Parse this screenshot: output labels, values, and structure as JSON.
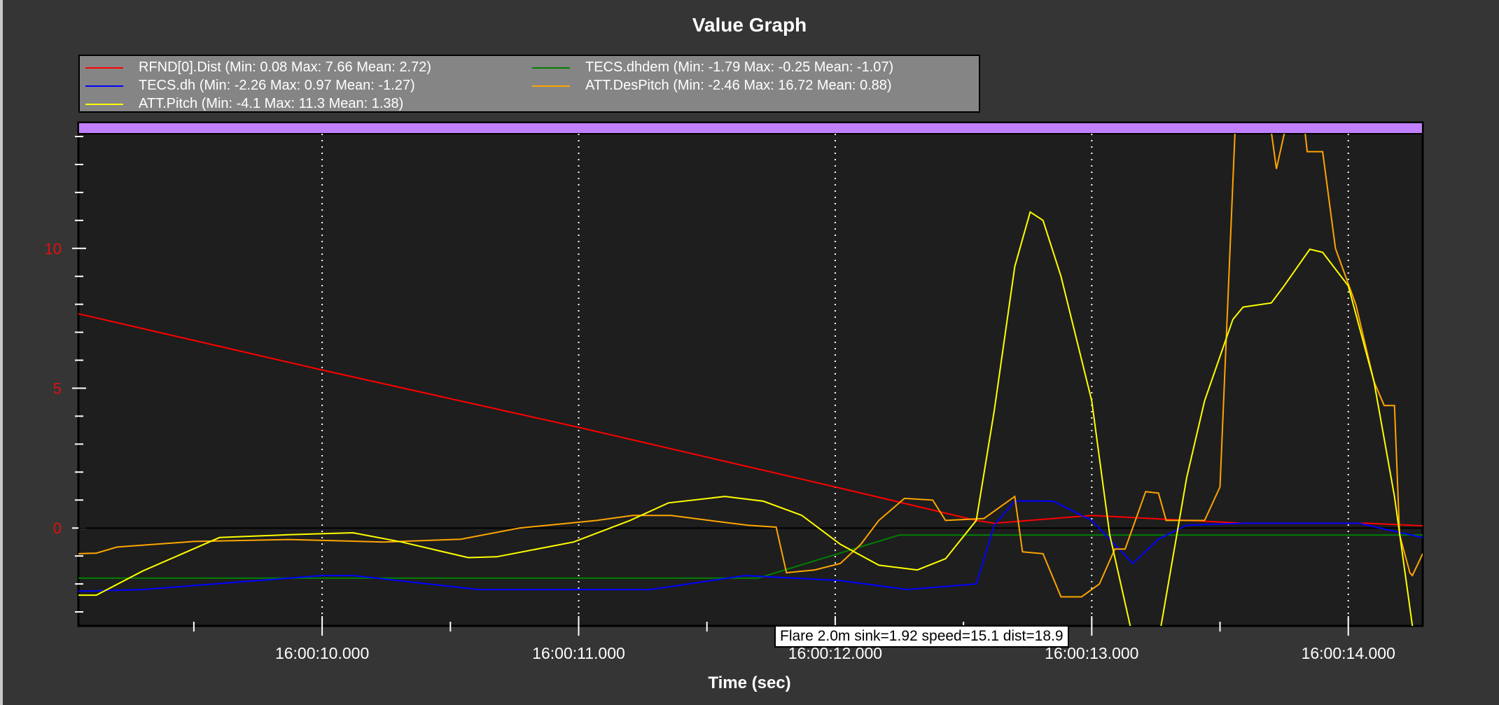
{
  "window": {
    "title": "Value Graph"
  },
  "tooltip": "Flare 2.0m sink=1.92 speed=15.1 dist=18.9",
  "colors": {
    "background": "#353535",
    "plot_bg": "#1e1e1e",
    "mode_band": "#c080ff",
    "ytick": "#e01010"
  },
  "chart_data": {
    "type": "line",
    "title": "Value Graph",
    "xlabel": "Time (sec)",
    "ylabel": "",
    "x_unit": "seconds after 16:00:00",
    "xlim": [
      9.05,
      14.29
    ],
    "ylim": [
      -3.5,
      14.1
    ],
    "grid": "vertical dotted at major x ticks",
    "legend_position": "top-left",
    "x_ticks": [
      {
        "value": 10,
        "label": "16:00:10.000"
      },
      {
        "value": 11,
        "label": "16:00:11.000"
      },
      {
        "value": 12,
        "label": "16:00:12.000"
      },
      {
        "value": 13,
        "label": "16:00:13.000"
      },
      {
        "value": 14,
        "label": "16:00:14.000"
      }
    ],
    "y_ticks": [
      {
        "value": 0,
        "label": "0"
      },
      {
        "value": 5,
        "label": "5"
      },
      {
        "value": 10,
        "label": "10"
      }
    ],
    "series": [
      {
        "name": "RFND[0].Dist",
        "legend": "RFND[0].Dist  (Min: 0.08 Max: 7.66 Mean: 2.72)",
        "color": "#ff0000",
        "points": [
          [
            9.05,
            7.66
          ],
          [
            10,
            5.65
          ],
          [
            11,
            3.6
          ],
          [
            12,
            1.47
          ],
          [
            12.55,
            0.27
          ],
          [
            12.62,
            0.17
          ],
          [
            13,
            0.45
          ],
          [
            13.59,
            0.17
          ],
          [
            14.07,
            0.17
          ],
          [
            14.29,
            0.08
          ]
        ]
      },
      {
        "name": "TECS.dhdem",
        "legend": "TECS.dhdem  (Min: -1.79 Max: -0.25 Mean: -1.07)",
        "color": "#008000",
        "points": [
          [
            9.05,
            -1.79
          ],
          [
            11.7,
            -1.79
          ],
          [
            12.25,
            -0.25
          ],
          [
            14.29,
            -0.25
          ]
        ]
      },
      {
        "name": "TECS.dh",
        "legend": "TECS.dh  (Min: -2.26 Max: 0.97 Mean: -1.27)",
        "color": "#0000ff",
        "points": [
          [
            9.05,
            -2.26
          ],
          [
            9.3,
            -2.2
          ],
          [
            10,
            -1.7
          ],
          [
            10.12,
            -1.7
          ],
          [
            10.61,
            -2.2
          ],
          [
            11.28,
            -2.2
          ],
          [
            11.65,
            -1.7
          ],
          [
            12.02,
            -1.88
          ],
          [
            12.28,
            -2.2
          ],
          [
            12.55,
            -2.0
          ],
          [
            12.62,
            0.1
          ],
          [
            12.7,
            0.97
          ],
          [
            12.85,
            0.96
          ],
          [
            13,
            0.27
          ],
          [
            13.16,
            -1.27
          ],
          [
            13.26,
            -0.4
          ],
          [
            13.37,
            0.1
          ],
          [
            13.59,
            0.17
          ],
          [
            14.04,
            0.17
          ],
          [
            14.29,
            -0.34
          ]
        ]
      },
      {
        "name": "ATT.DesPitch",
        "legend": "ATT.DesPitch  (Min: -2.46 Max: 16.72 Mean: 0.88)",
        "color": "#ffa500",
        "points": [
          [
            9.05,
            -0.92
          ],
          [
            9.12,
            -0.9
          ],
          [
            9.2,
            -0.68
          ],
          [
            9.5,
            -0.48
          ],
          [
            9.87,
            -0.41
          ],
          [
            10.24,
            -0.5
          ],
          [
            10.54,
            -0.4
          ],
          [
            10.77,
            0
          ],
          [
            10.88,
            0.1
          ],
          [
            11.07,
            0.27
          ],
          [
            11.21,
            0.45
          ],
          [
            11.36,
            0.45
          ],
          [
            11.51,
            0.27
          ],
          [
            11.66,
            0.1
          ],
          [
            11.77,
            0.03
          ],
          [
            11.81,
            -1.6
          ],
          [
            11.92,
            -1.5
          ],
          [
            12.02,
            -1.27
          ],
          [
            12.1,
            -0.58
          ],
          [
            12.17,
            0.27
          ],
          [
            12.27,
            1.06
          ],
          [
            12.38,
            1.0
          ],
          [
            12.43,
            0.27
          ],
          [
            12.58,
            0.34
          ],
          [
            12.7,
            1.13
          ],
          [
            12.73,
            -0.85
          ],
          [
            12.81,
            -0.92
          ],
          [
            12.88,
            -2.46
          ],
          [
            12.96,
            -2.46
          ],
          [
            13.03,
            -2.0
          ],
          [
            13.09,
            -0.75
          ],
          [
            13.13,
            -0.75
          ],
          [
            13.21,
            1.3
          ],
          [
            13.26,
            1.25
          ],
          [
            13.29,
            0.27
          ],
          [
            13.44,
            0.27
          ],
          [
            13.5,
            1.47
          ],
          [
            13.56,
            14.5
          ],
          [
            13.68,
            15.5
          ],
          [
            13.72,
            12.84
          ],
          [
            13.76,
            14.5
          ],
          [
            13.8,
            16.72
          ],
          [
            13.84,
            13.46
          ],
          [
            13.9,
            13.46
          ],
          [
            13.95,
            10.0
          ],
          [
            14.03,
            7.98
          ],
          [
            14.1,
            5.24
          ],
          [
            14.14,
            4.38
          ],
          [
            14.18,
            4.38
          ],
          [
            14.2,
            -0.24
          ],
          [
            14.24,
            -1.6
          ],
          [
            14.25,
            -1.7
          ],
          [
            14.29,
            -0.92
          ]
        ]
      },
      {
        "name": "ATT.Pitch",
        "legend": "ATT.Pitch  (Min: -4.1 Max: 11.3 Mean: 1.38)",
        "color": "#ffff00",
        "points": [
          [
            9.05,
            -2.4
          ],
          [
            9.12,
            -2.4
          ],
          [
            9.3,
            -1.54
          ],
          [
            9.6,
            -0.34
          ],
          [
            9.87,
            -0.24
          ],
          [
            10.12,
            -0.17
          ],
          [
            10.31,
            -0.5
          ],
          [
            10.57,
            -1.06
          ],
          [
            10.68,
            -1.03
          ],
          [
            10.98,
            -0.5
          ],
          [
            11.2,
            0.27
          ],
          [
            11.35,
            0.9
          ],
          [
            11.57,
            1.13
          ],
          [
            11.72,
            0.96
          ],
          [
            11.87,
            0.45
          ],
          [
            12.02,
            -0.58
          ],
          [
            12.17,
            -1.33
          ],
          [
            12.32,
            -1.5
          ],
          [
            12.43,
            -1.1
          ],
          [
            12.55,
            0.27
          ],
          [
            12.62,
            4.2
          ],
          [
            12.7,
            9.35
          ],
          [
            12.76,
            11.3
          ],
          [
            12.81,
            11.0
          ],
          [
            12.88,
            9.0
          ],
          [
            13,
            4.55
          ],
          [
            13.07,
            -0.24
          ],
          [
            13.15,
            -3.5
          ],
          [
            13.2,
            -4.1
          ],
          [
            13.27,
            -3.5
          ],
          [
            13.37,
            1.8
          ],
          [
            13.44,
            4.55
          ],
          [
            13.55,
            7.46
          ],
          [
            13.59,
            7.9
          ],
          [
            13.7,
            8.05
          ],
          [
            13.75,
            8.66
          ],
          [
            13.85,
            9.97
          ],
          [
            13.9,
            9.86
          ],
          [
            14,
            8.66
          ],
          [
            14.1,
            5.24
          ],
          [
            14.18,
            1.13
          ],
          [
            14.25,
            -3.5
          ],
          [
            14.29,
            -4.1
          ]
        ]
      }
    ]
  }
}
